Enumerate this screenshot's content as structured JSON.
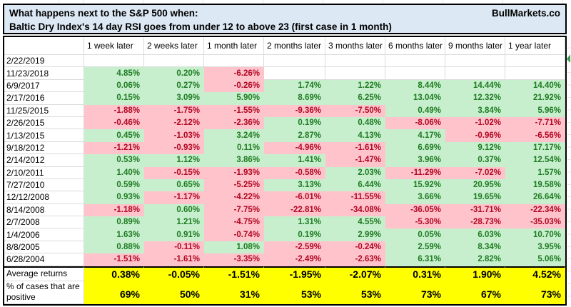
{
  "title": {
    "line1": "What happens next to the S&P 500 when:",
    "line2": "Baltic Dry Index's 14 day RSI goes from under 12 to above 23 (first case in 1 month)",
    "brand": "BullMarkets.co"
  },
  "colors": {
    "positive_fill": "#c7efce",
    "positive_text": "#1e7b21",
    "negative_fill": "#ffc3cb",
    "negative_text": "#b00622",
    "summary_fill": "#ffff00",
    "title_fill": "#dce8f3"
  },
  "chart_data": {
    "type": "table",
    "title": "What happens next to the S&P 500 when: Baltic Dry Index's 14 day RSI goes from under 12 to above 23 (first case in 1 month)",
    "columns": [
      "1 week later",
      "2 weeks later",
      "1 month later",
      "2 months later",
      "3 months later",
      "6 months later",
      "9 months later",
      "1 year later"
    ],
    "rows": [
      {
        "date": "2/22/2019",
        "values": [
          "",
          "",
          "",
          "",
          "",
          "",
          "",
          ""
        ]
      },
      {
        "date": "11/23/2018",
        "values": [
          "4.85%",
          "0.20%",
          "-6.26%",
          "",
          "",
          "",
          "",
          ""
        ]
      },
      {
        "date": "6/9/2017",
        "values": [
          "0.06%",
          "0.27%",
          "-0.26%",
          "1.74%",
          "1.22%",
          "8.44%",
          "14.44%",
          "14.40%"
        ]
      },
      {
        "date": "2/17/2016",
        "values": [
          "0.15%",
          "3.09%",
          "5.90%",
          "8.69%",
          "6.25%",
          "13.04%",
          "12.32%",
          "21.92%"
        ]
      },
      {
        "date": "11/25/2015",
        "values": [
          "-1.88%",
          "-1.75%",
          "-1.55%",
          "-9.36%",
          "-7.50%",
          "0.49%",
          "3.84%",
          "5.96%"
        ]
      },
      {
        "date": "2/26/2015",
        "values": [
          "-0.46%",
          "-2.12%",
          "-2.36%",
          "0.19%",
          "0.48%",
          "-8.06%",
          "-1.02%",
          "-7.71%"
        ]
      },
      {
        "date": "1/13/2015",
        "values": [
          "0.45%",
          "-1.03%",
          "3.24%",
          "2.87%",
          "4.13%",
          "4.17%",
          "-0.96%",
          "-6.56%"
        ]
      },
      {
        "date": "9/18/2012",
        "values": [
          "-1.21%",
          "-0.93%",
          "0.11%",
          "-4.96%",
          "-1.61%",
          "6.69%",
          "9.12%",
          "17.17%"
        ]
      },
      {
        "date": "2/14/2012",
        "values": [
          "0.53%",
          "1.12%",
          "3.86%",
          "1.41%",
          "-1.47%",
          "3.96%",
          "0.37%",
          "12.54%"
        ]
      },
      {
        "date": "2/10/2011",
        "values": [
          "1.40%",
          "-0.15%",
          "-1.93%",
          "-0.58%",
          "2.03%",
          "-11.29%",
          "-7.02%",
          "1.57%"
        ]
      },
      {
        "date": "7/27/2010",
        "values": [
          "0.59%",
          "0.65%",
          "-5.25%",
          "3.13%",
          "6.44%",
          "15.92%",
          "20.95%",
          "19.58%"
        ]
      },
      {
        "date": "12/12/2008",
        "values": [
          "0.93%",
          "-1.17%",
          "-4.22%",
          "-6.01%",
          "-11.55%",
          "3.66%",
          "19.65%",
          "26.64%"
        ]
      },
      {
        "date": "8/14/2008",
        "values": [
          "-1.18%",
          "0.60%",
          "-7.75%",
          "-22.81%",
          "-34.08%",
          "-36.05%",
          "-31.71%",
          "-22.34%"
        ]
      },
      {
        "date": "2/7/2008",
        "values": [
          "0.89%",
          "1.21%",
          "-4.75%",
          "1.31%",
          "4.55%",
          "-5.30%",
          "-28.73%",
          "-35.03%"
        ]
      },
      {
        "date": "1/4/2006",
        "values": [
          "1.63%",
          "0.91%",
          "-0.74%",
          "0.19%",
          "2.99%",
          "0.05%",
          "6.03%",
          "10.70%"
        ]
      },
      {
        "date": "8/8/2005",
        "values": [
          "0.88%",
          "-0.11%",
          "1.08%",
          "-2.59%",
          "-0.24%",
          "2.59%",
          "8.34%",
          "3.95%"
        ]
      },
      {
        "date": "6/28/2004",
        "values": [
          "-1.51%",
          "-1.61%",
          "-3.35%",
          "-2.49%",
          "-2.63%",
          "6.31%",
          "2.82%",
          "5.06%"
        ]
      }
    ],
    "summary": {
      "average_label": "Average returns",
      "average_values": [
        "0.38%",
        "-0.05%",
        "-1.51%",
        "-1.95%",
        "-2.07%",
        "0.31%",
        "1.90%",
        "4.52%"
      ],
      "percent_label": "% of cases that are positive",
      "percent_values": [
        "69%",
        "50%",
        "31%",
        "53%",
        "53%",
        "73%",
        "67%",
        "73%"
      ]
    },
    "cell_color_rule": "positive values green fill, negative values red fill, blanks white; summary rows yellow"
  }
}
